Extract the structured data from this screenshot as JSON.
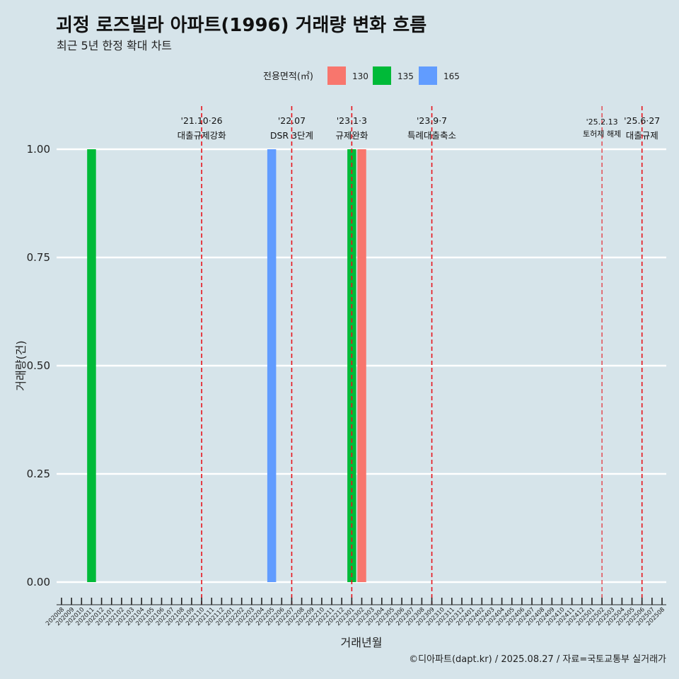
{
  "chart_data": {
    "type": "bar",
    "title": "괴정 로즈빌라 아파트(1996) 거래량 변화 흐름",
    "subtitle": "최근 5년 한정 확대 차트",
    "xlabel": "거래년월",
    "ylabel": "거래량(건)",
    "ylim": [
      0,
      1
    ],
    "yticks": [
      "0.00",
      "0.25",
      "0.50",
      "0.75",
      "1.00"
    ],
    "grid": true,
    "legend": {
      "title": "전용면적(㎡)",
      "placement": "top-center",
      "entries": [
        {
          "label": "130",
          "color": "#f8766d"
        },
        {
          "label": "135",
          "color": "#00ba38"
        },
        {
          "label": "165",
          "color": "#619cff"
        }
      ]
    },
    "categories": [
      "202008",
      "202009",
      "202010",
      "202011",
      "202012",
      "202101",
      "202102",
      "202103",
      "202104",
      "202105",
      "202106",
      "202107",
      "202108",
      "202109",
      "202110",
      "202111",
      "202112",
      "202201",
      "202202",
      "202203",
      "202204",
      "202205",
      "202206",
      "202207",
      "202208",
      "202209",
      "202210",
      "202211",
      "202212",
      "202301",
      "202302",
      "202303",
      "202304",
      "202305",
      "202306",
      "202307",
      "202308",
      "202309",
      "202310",
      "202311",
      "202312",
      "202401",
      "202402",
      "202403",
      "202404",
      "202405",
      "202406",
      "202407",
      "202408",
      "202409",
      "202410",
      "202411",
      "202412",
      "202501",
      "202502",
      "202503",
      "202504",
      "202505",
      "202506",
      "202507",
      "202508"
    ],
    "bars": [
      {
        "month": "202011",
        "series": "135",
        "value": 1
      },
      {
        "month": "202205",
        "series": "165",
        "value": 1
      },
      {
        "month": "202301",
        "series": "135",
        "value": 1
      },
      {
        "month": "202302",
        "series": "130",
        "value": 1
      }
    ],
    "annotations": [
      {
        "month": "202110",
        "offset": 0.0,
        "date": "'21.10·26",
        "label": "대출규제강화",
        "small": false
      },
      {
        "month": "202207",
        "offset": 0.0,
        "date": "'22.07",
        "label": "DSR 3단계",
        "small": false
      },
      {
        "month": "202301",
        "offset": 0.0,
        "date": "'23.1·3",
        "label": "규제완화",
        "small": false
      },
      {
        "month": "202309",
        "offset": 0.0,
        "date": "'23.9·7",
        "label": "특례대출축소",
        "small": false
      },
      {
        "month": "202502",
        "offset": 0.0,
        "date": "'25.2.13",
        "label": "토허제 해제",
        "small": true
      },
      {
        "month": "202506",
        "offset": 0.0,
        "date": "'25.6·27",
        "label": "대출규제",
        "small": false
      }
    ],
    "caption": "©디아파트(dapt.kr) / 2025.08.27 / 자료=국토교통부 실거래가"
  }
}
